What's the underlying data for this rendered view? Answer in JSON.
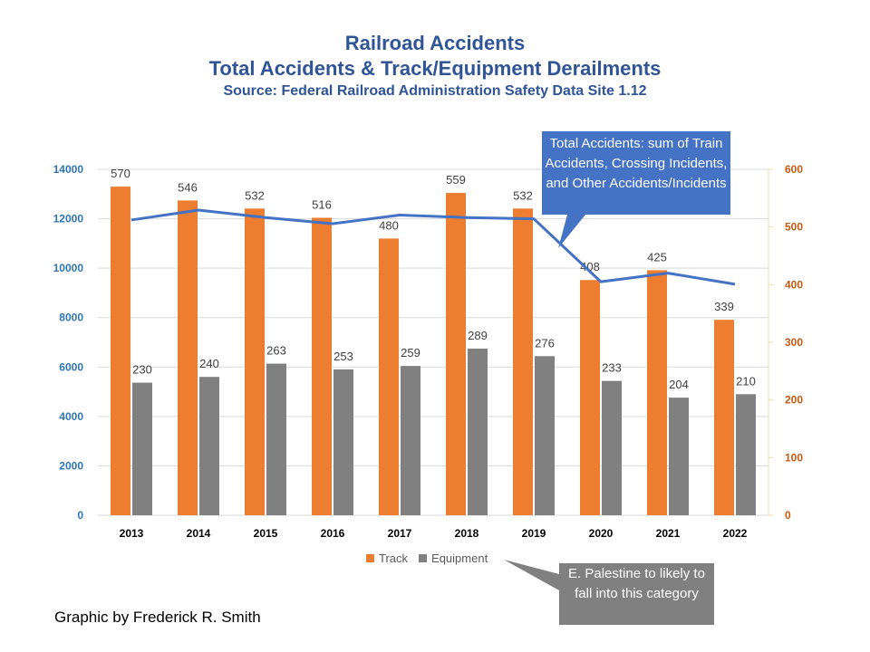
{
  "title": {
    "line1": "Railroad Accidents",
    "line2": "Total Accidents & Track/Equipment Derailments",
    "line3": "Source: Federal Railroad Administration  Safety Data Site 1.12"
  },
  "chart_data": {
    "type": "bar",
    "categories": [
      "2013",
      "2014",
      "2015",
      "2016",
      "2017",
      "2018",
      "2019",
      "2020",
      "2021",
      "2022"
    ],
    "series": [
      {
        "name": "Track",
        "type": "bar",
        "axis": "right",
        "color": "#ED7D31",
        "values": [
          570,
          546,
          532,
          516,
          480,
          559,
          532,
          408,
          425,
          339
        ]
      },
      {
        "name": "Equipment",
        "type": "bar",
        "axis": "right",
        "color": "#808080",
        "values": [
          230,
          240,
          263,
          253,
          259,
          289,
          276,
          233,
          204,
          210
        ]
      },
      {
        "name": "Total Accidents",
        "type": "line",
        "axis": "left",
        "color": "#4472C4",
        "values": [
          11950,
          12350,
          12050,
          11800,
          12150,
          12050,
          12000,
          9450,
          9800,
          9350
        ]
      }
    ],
    "y_left": {
      "min": 0,
      "max": 14000,
      "ticks": [
        "0",
        "2000",
        "4000",
        "6000",
        "8000",
        "10000",
        "12000",
        "14000"
      ],
      "color": "#2E75B6"
    },
    "y_right": {
      "min": 0,
      "max": 600,
      "ticks": [
        "0",
        "100",
        "200",
        "300",
        "400",
        "500",
        "600"
      ],
      "color": "#C55A11"
    },
    "grid": true,
    "legend": {
      "position": "bottom",
      "entries": [
        "Track",
        "Equipment"
      ]
    }
  },
  "annotations": {
    "blue_callout": "Total Accidents: sum of Train Accidents, Crossing Incidents, and Other Accidents/Incidents",
    "gray_callout": "E. Palestine to likely to fall into this category"
  },
  "credit": "Graphic by Frederick R. Smith",
  "colors": {
    "title": "#2F5597",
    "grid": "#D9D9D9",
    "bar_label": "#404040"
  }
}
